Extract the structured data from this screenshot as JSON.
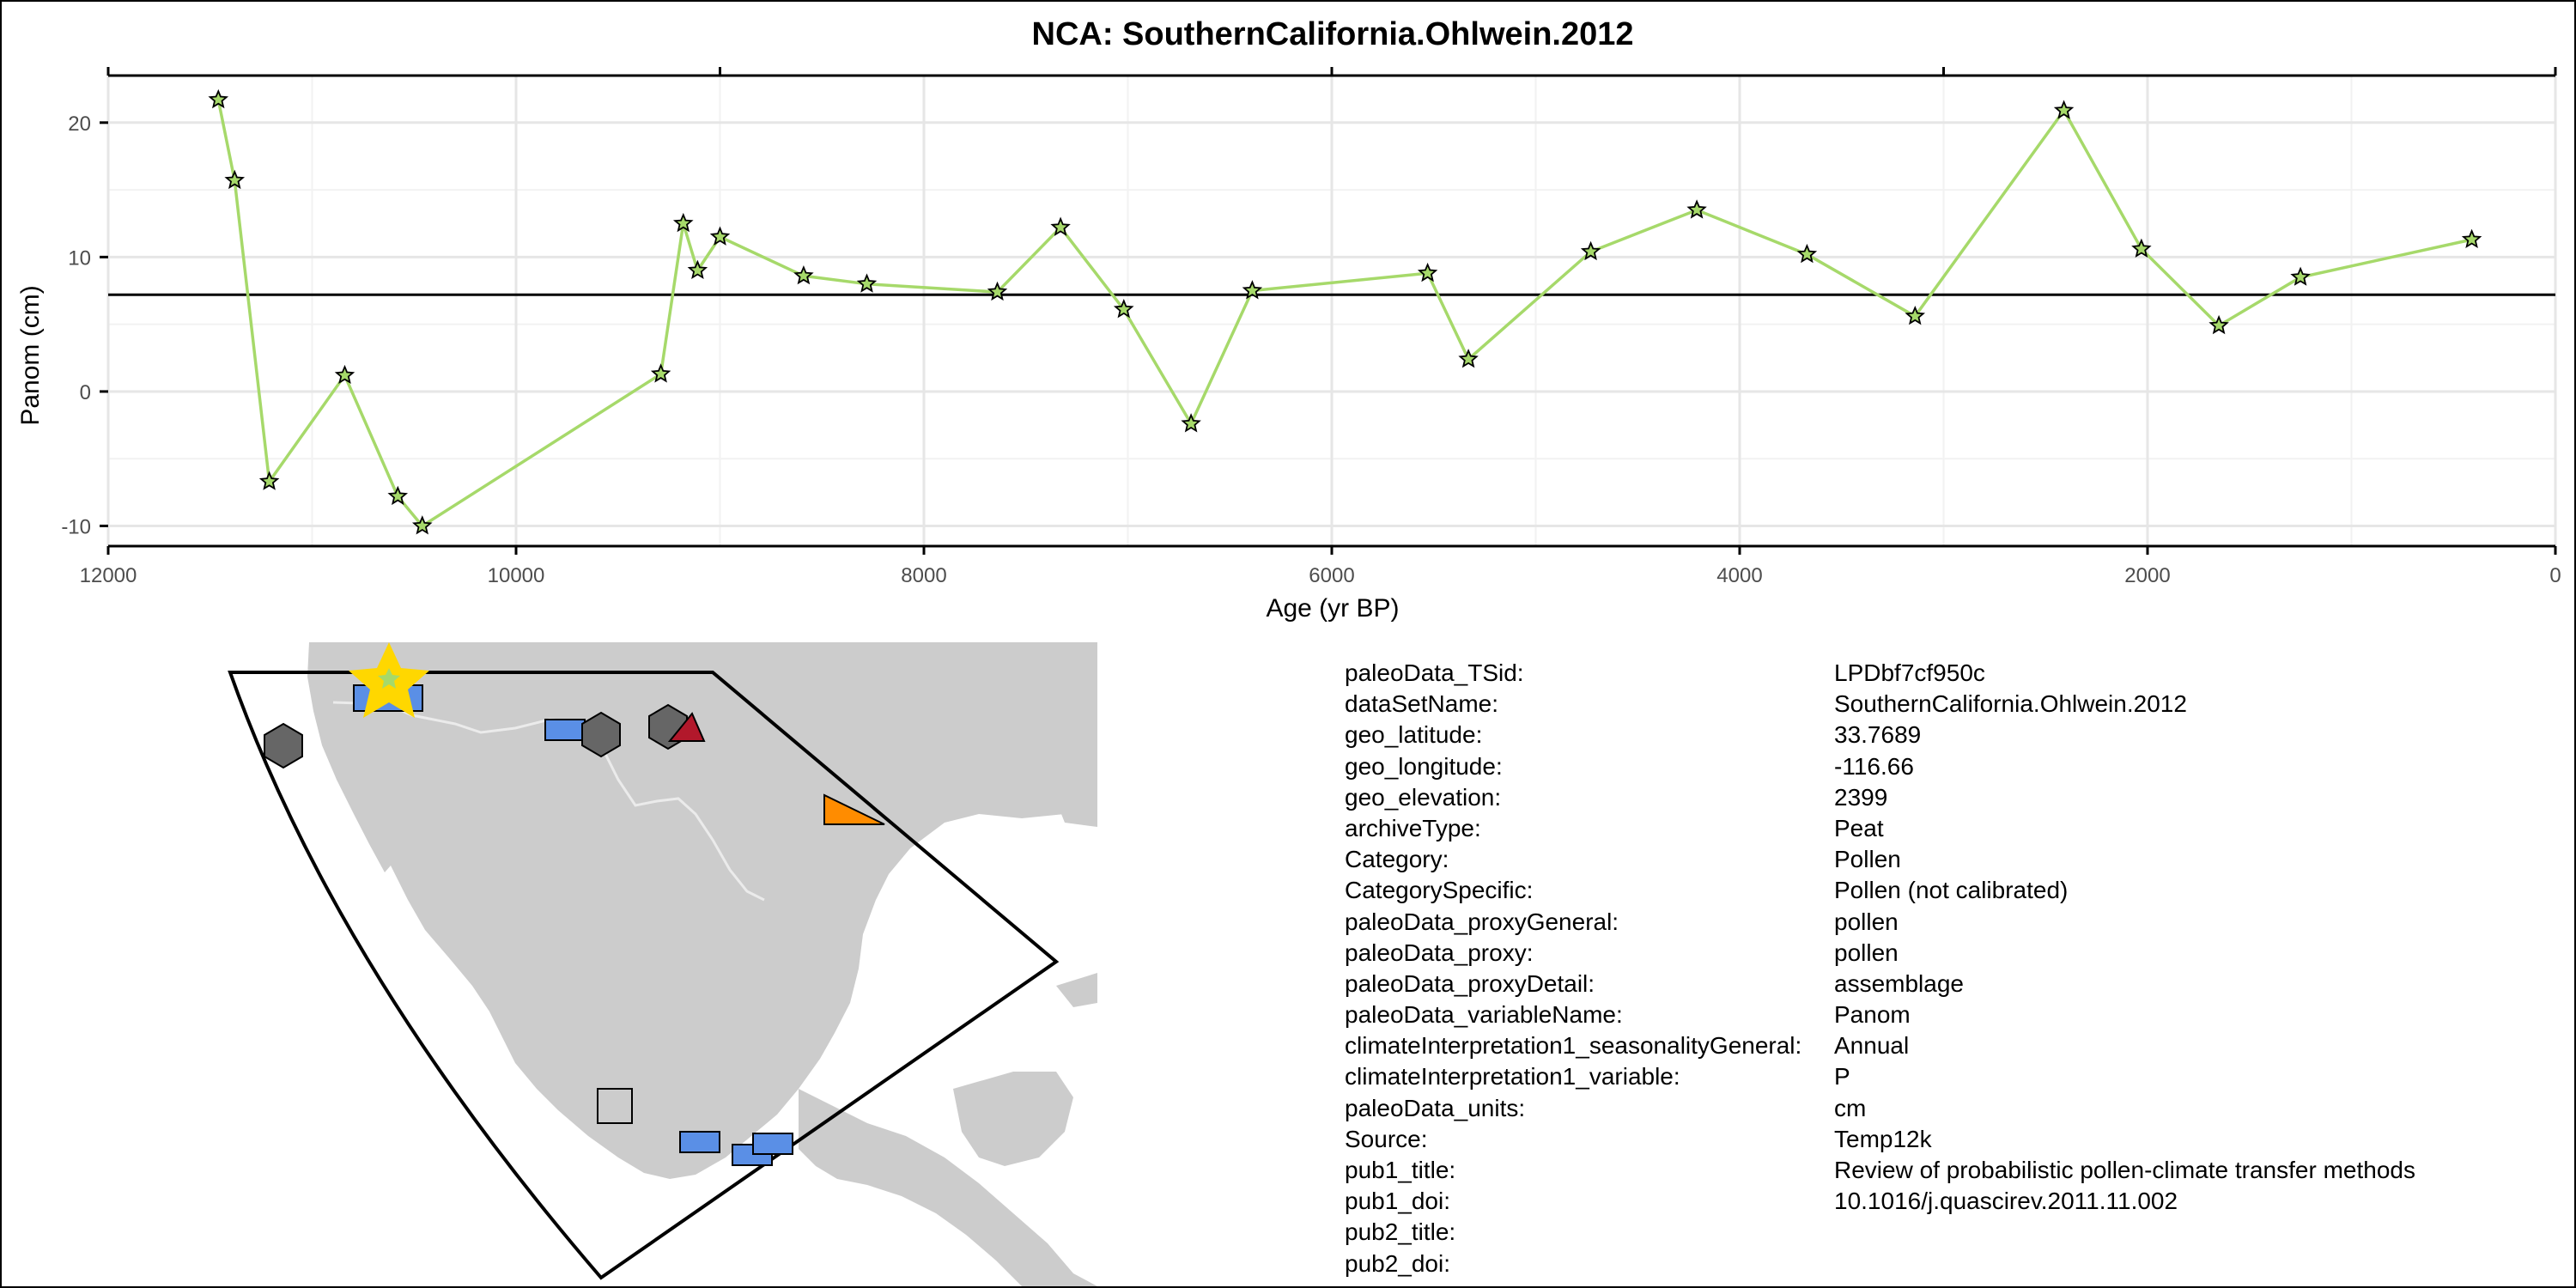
{
  "chart_data": {
    "type": "line",
    "title": "NCA: SouthernCalifornia.Ohlwein.2012",
    "xlabel": "Age (yr BP)",
    "ylabel": "Panom (cm)",
    "xlim": [
      12000,
      0
    ],
    "ylim": [
      -11.5,
      23.5
    ],
    "x_reversed": true,
    "xticks": [
      12000,
      10000,
      8000,
      6000,
      4000,
      2000,
      0
    ],
    "xtick_labels": [
      "12000",
      "10000",
      "8000",
      "6000",
      "4000",
      "2000",
      "0"
    ],
    "yticks": [
      20,
      10,
      0,
      -10
    ],
    "ytick_labels": [
      "20",
      "10",
      "0",
      "-10"
    ],
    "grid": true,
    "reference_line_y": 7.2,
    "line_color": "#a6d96a",
    "marker": "star",
    "marker_fill": "#a6d96a",
    "marker_edge": "#000000",
    "x": [
      11460,
      11380,
      11210,
      10840,
      10580,
      10460,
      9290,
      9180,
      9110,
      9000,
      8590,
      8280,
      7640,
      7330,
      7020,
      6690,
      6390,
      5530,
      5330,
      4730,
      4210,
      3670,
      3140,
      2410,
      2030,
      1650,
      1250,
      410
    ],
    "y": [
      21.7,
      15.7,
      -6.7,
      1.2,
      -7.8,
      -10.0,
      1.3,
      12.5,
      9.0,
      11.5,
      8.6,
      8.0,
      7.4,
      12.2,
      6.1,
      -2.4,
      7.5,
      8.8,
      2.4,
      10.4,
      13.5,
      10.2,
      5.6,
      20.9,
      10.6,
      4.9,
      8.5,
      11.3
    ]
  },
  "map": {
    "land_color": "#cccccc",
    "border_color": "#ebebeb",
    "region_outline_color": "#000000",
    "site_star_color": "#ffd700",
    "site_star_inner_color": "#a6d96a",
    "marker_colors": {
      "blue": "#5a8fe6",
      "grey_hex": "#666666",
      "red": "#b2182b",
      "orange": "#ff8c00",
      "light_grey": "#cccccc"
    }
  },
  "metadata": [
    {
      "key": "paleoData_TSid:",
      "value": "LPDbf7cf950c"
    },
    {
      "key": "dataSetName:",
      "value": "SouthernCalifornia.Ohlwein.2012"
    },
    {
      "key": "geo_latitude:",
      "value": "33.7689"
    },
    {
      "key": "geo_longitude:",
      "value": "-116.66"
    },
    {
      "key": "geo_elevation:",
      "value": "2399"
    },
    {
      "key": "archiveType:",
      "value": "Peat"
    },
    {
      "key": "Category:",
      "value": "Pollen"
    },
    {
      "key": "CategorySpecific:",
      "value": "Pollen (not calibrated)"
    },
    {
      "key": "paleoData_proxyGeneral:",
      "value": "pollen"
    },
    {
      "key": "paleoData_proxy:",
      "value": "pollen"
    },
    {
      "key": "paleoData_proxyDetail:",
      "value": "assemblage"
    },
    {
      "key": "paleoData_variableName:",
      "value": "Panom"
    },
    {
      "key": "climateInterpretation1_seasonalityGeneral:",
      "value": "Annual"
    },
    {
      "key": "climateInterpretation1_variable:",
      "value": "P"
    },
    {
      "key": "paleoData_units:",
      "value": "cm"
    },
    {
      "key": "Source:",
      "value": "Temp12k"
    },
    {
      "key": "pub1_title:",
      "value": "Review of probabilistic pollen-climate transfer methods"
    },
    {
      "key": "pub1_doi:",
      "value": "10.1016/j.quascirev.2011.11.002"
    },
    {
      "key": "pub2_title:",
      "value": ""
    },
    {
      "key": "pub2_doi:",
      "value": ""
    }
  ]
}
